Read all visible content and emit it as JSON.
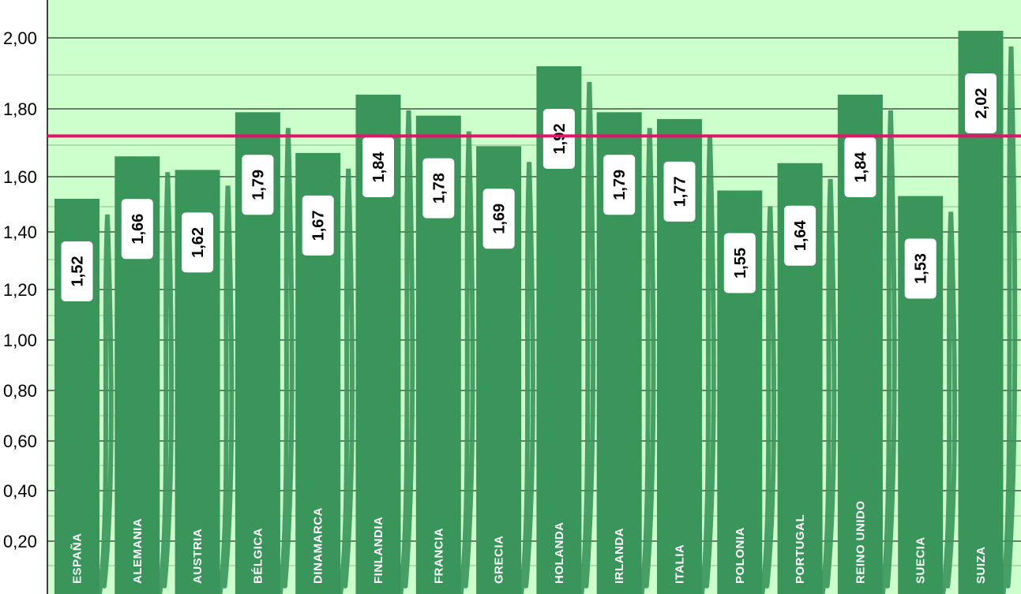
{
  "chart_data": {
    "type": "bar",
    "categories": [
      "ESPAÑA",
      "ALEMANIA",
      "AUSTRIA",
      "BÉLGICA",
      "DINAMARCA",
      "FINLANDIA",
      "FRANCIA",
      "GRECIA",
      "HOLANDA",
      "IRLANDA",
      "ITALIA",
      "POLONIA",
      "PORTUGAL",
      "REINO UNIDO",
      "SUECIA",
      "SUIZA"
    ],
    "values": [
      1.52,
      1.66,
      1.62,
      1.79,
      1.67,
      1.84,
      1.78,
      1.69,
      1.92,
      1.79,
      1.77,
      1.55,
      1.64,
      1.84,
      1.53,
      2.02
    ],
    "value_labels": [
      "1,52",
      "1,66",
      "1,62",
      "1,79",
      "1,67",
      "1,84",
      "1,78",
      "1,69",
      "1,92",
      "1,79",
      "1,77",
      "1,55",
      "1,64",
      "1,84",
      "1,53",
      "2,02"
    ],
    "yticks": [
      {
        "value": 0.2,
        "label": "0,20"
      },
      {
        "value": 0.4,
        "label": "0,40"
      },
      {
        "value": 0.6,
        "label": "0,60"
      },
      {
        "value": 0.8,
        "label": "0,80"
      },
      {
        "value": 1.0,
        "label": "1,00"
      },
      {
        "value": 1.2,
        "label": "1,20"
      },
      {
        "value": 1.4,
        "label": "1,40"
      },
      {
        "value": 1.6,
        "label": "1,60"
      },
      {
        "value": 1.8,
        "label": "1,80"
      },
      {
        "value": 2.0,
        "label": "2,00"
      }
    ],
    "reference_line": {
      "value": 1.72,
      "color": "#e8106a"
    },
    "title": "",
    "xlabel": "",
    "ylabel": "",
    "grid": true,
    "colors": {
      "bar": "#3a955a",
      "background": "#ccffcc",
      "label_box": "#ffffff",
      "grid": "#000000"
    }
  }
}
